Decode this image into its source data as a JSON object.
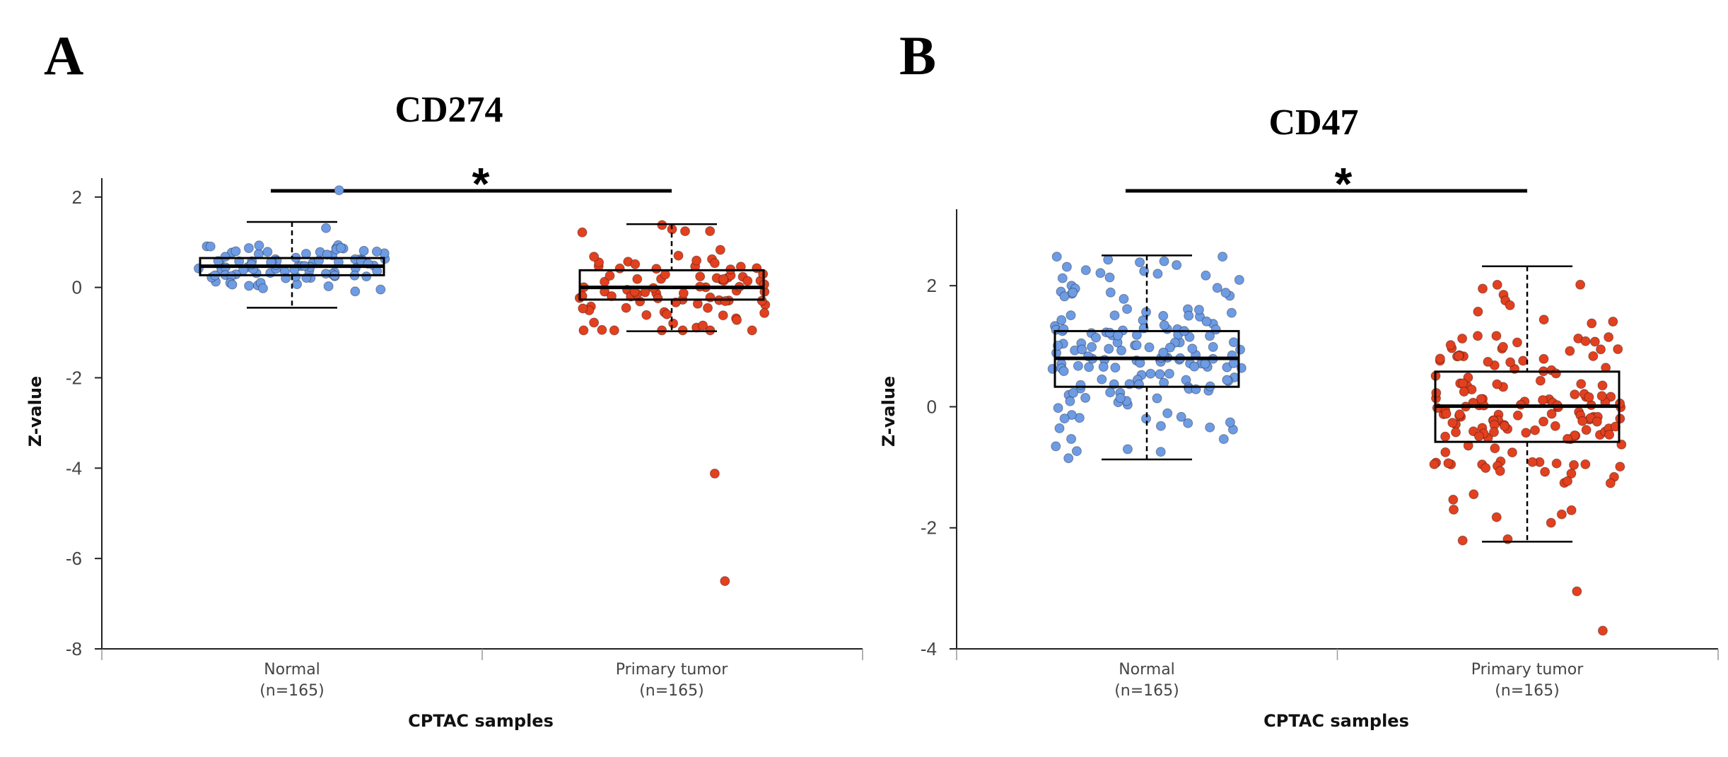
{
  "colors": {
    "normal": "#6d9be4",
    "tumor": "#e2401f"
  },
  "chart_data": [
    {
      "panel_label": "A",
      "type": "box",
      "title": "CD274",
      "xlabel": "CPTAC samples",
      "ylabel": "Z-value",
      "ylim": [
        -8,
        2.2
      ],
      "yticks": [
        2,
        0,
        -2,
        -4,
        -6,
        -8
      ],
      "ytick_labels": [
        "2",
        "0",
        "-2",
        "-4",
        "-6",
        "-8"
      ],
      "categories": [
        {
          "name": "Normal",
          "n_label": "(n=165)"
        },
        {
          "name": "Primary tumor",
          "n_label": "(n=165)"
        }
      ],
      "significance": "*",
      "boxes": [
        {
          "category": "Normal",
          "whisker_low": -0.45,
          "q1": 0.27,
          "median": 0.47,
          "q3": 0.65,
          "whisker_high": 1.45
        },
        {
          "category": "Primary tumor",
          "whisker_low": -0.97,
          "q1": -0.27,
          "median": 0.0,
          "q3": 0.38,
          "whisker_high": 1.4
        }
      ],
      "outliers": [
        {
          "category": "Normal",
          "values": [
            2.15
          ]
        },
        {
          "category": "Primary tumor",
          "values": [
            -4.12,
            -6.5
          ]
        }
      ],
      "point_count_shown": 90
    },
    {
      "panel_label": "B",
      "type": "box",
      "title": "CD47",
      "xlabel": "CPTAC samples",
      "ylabel": "Z-value",
      "ylim": [
        -4,
        3.1
      ],
      "yticks": [
        2,
        0,
        -2,
        -4
      ],
      "ytick_labels": [
        "2",
        "0",
        "-2",
        "-4"
      ],
      "categories": [
        {
          "name": "Normal",
          "n_label": "(n=165)"
        },
        {
          "name": "Primary tumor",
          "n_label": "(n=165)"
        }
      ],
      "significance": "*",
      "boxes": [
        {
          "category": "Normal",
          "whisker_low": -0.87,
          "q1": 0.33,
          "median": 0.8,
          "q3": 1.25,
          "whisker_high": 2.5
        },
        {
          "category": "Primary tumor",
          "whisker_low": -2.23,
          "q1": -0.58,
          "median": 0.01,
          "q3": 0.58,
          "whisker_high": 2.32
        }
      ],
      "outliers": [
        {
          "category": "Primary tumor",
          "values": [
            -3.05,
            -3.7
          ]
        }
      ],
      "point_count_shown": 165
    }
  ]
}
